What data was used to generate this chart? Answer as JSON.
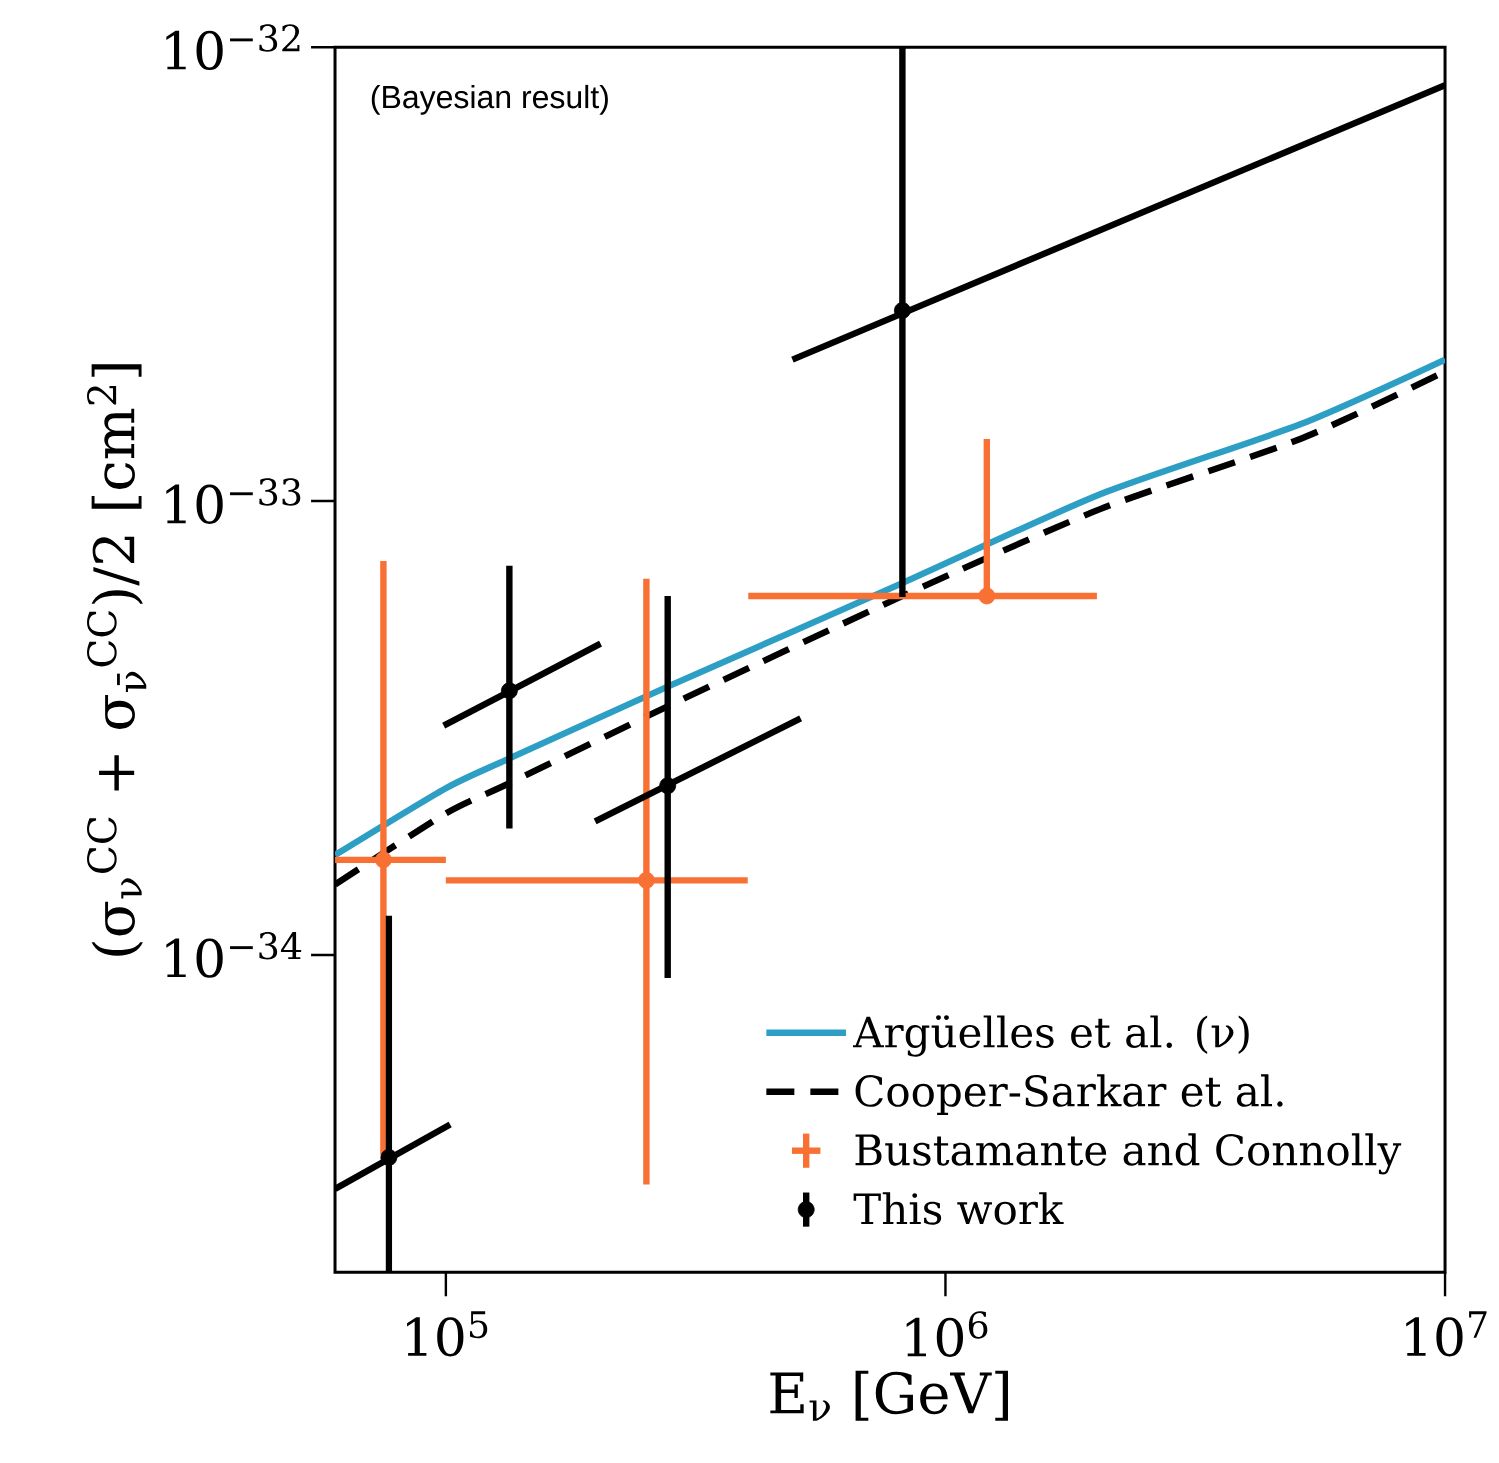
{
  "chart_data": {
    "type": "line",
    "log": "xy",
    "legend": "bottom right",
    "xlabel": "E$_{ν}$ [GeV]",
    "ylabel": "(σ$_{ν}$$^{CC}$ + σ$_{ν̄}$$^{CC}$)/2 [cm$^{2}$]",
    "annotations": [
      "(Bayesian result)"
    ],
    "xlim": [
      60000,
      10000000
    ],
    "ylim": [
      2e-35,
      1e-32
    ],
    "xticks": [
      {
        "value": 100000,
        "label": "10$^{5}$"
      },
      {
        "value": 1000000,
        "label": "10$^{6}$"
      },
      {
        "value": 10000000,
        "label": "10$^{7}$"
      }
    ],
    "yticks": [
      {
        "value": 1e-34,
        "label": "10$^{−34}$"
      },
      {
        "value": 1e-33,
        "label": "10$^{−33}$"
      },
      {
        "value": 1e-32,
        "label": "10$^{−32}$"
      }
    ],
    "series": [
      {
        "name": "Argüelles et al. (ν)",
        "type": "line",
        "color": "#2e9fc4",
        "line_style": "solid",
        "x": [
          60000,
          100000,
          134000,
          278000,
          813000,
          2040000,
          5130000,
          10000000
        ],
        "values": [
          1.66e-34,
          2.33e-34,
          2.71e-34,
          3.9e-34,
          6.57e-34,
          1.035e-33,
          1.476e-33,
          2.05e-33
        ]
      },
      {
        "name": "Cooper-Sarkar et al.",
        "type": "line",
        "color": "#000000",
        "line_style": "dashed",
        "x": [
          60000,
          100000,
          134000,
          278000,
          813000,
          2040000,
          5130000,
          10000000
        ],
        "values": [
          1.43e-34,
          2.05e-34,
          2.39e-34,
          3.53e-34,
          6.15e-34,
          9.6e-34,
          1.37e-33,
          1.93e-33
        ]
      },
      {
        "name": "Bustamante and Connolly",
        "type": "scatter",
        "color": "#f87033",
        "marker": "circle",
        "x": [
          75000,
          252000,
          1210000
        ],
        "values": [
          1.62e-34,
          1.46e-34,
          6.18e-34
        ],
        "errors": [
          [
            3.63e-35,
            7.38e-34
          ],
          [
            3.12e-35,
            6.74e-34
          ],
          [
            6.18e-34,
            1.37e-33
          ]
        ],
        "xerrors": [
          [
            60000,
            100000
          ],
          [
            100000,
            402000
          ],
          [
            403000,
            2010000
          ]
        ]
      },
      {
        "name": "This work",
        "type": "scatter",
        "color": "#000000",
        "marker": "circle",
        "x": [
          76900,
          134000,
          278000,
          820000
        ],
        "values": [
          3.58e-35,
          3.82e-34,
          2.36e-34,
          2.63e-33
        ],
        "errors": [
          [
            2e-35,
            1.22e-34
          ],
          [
            1.9e-34,
            7.2e-34
          ],
          [
            8.9e-35,
            6.18e-34
          ],
          [
            6.15e-34,
            1e-32
          ]
        ]
      },
      {
        "type": "line",
        "color": "#000000",
        "line_style": "solid",
        "x": [
          60000,
          102000
        ],
        "values": [
          3.05e-35,
          4.23e-35
        ]
      },
      {
        "type": "line",
        "color": "#000000",
        "line_style": "solid",
        "x": [
          99000,
          204000
        ],
        "values": [
          3.2e-34,
          4.85e-34
        ]
      },
      {
        "type": "line",
        "color": "#000000",
        "line_style": "solid",
        "x": [
          199000,
          513000
        ],
        "values": [
          1.97e-34,
          3.32e-34
        ]
      },
      {
        "type": "line",
        "color": "#000000",
        "line_style": "solid",
        "x": [
          494000,
          10000000
        ],
        "values": [
          2.05e-33,
          8.25e-33
        ]
      }
    ]
  }
}
